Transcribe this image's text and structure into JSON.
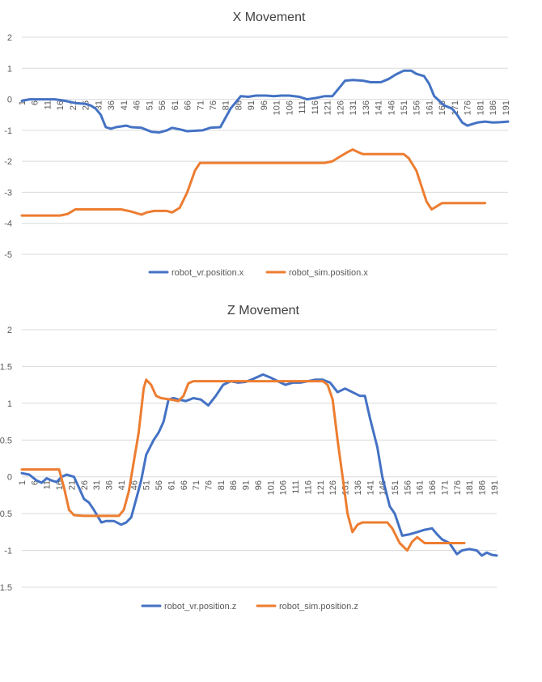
{
  "colors": {
    "vr": "#4472C4",
    "sim": "#ED7D31",
    "grid": "#D9D9D9",
    "text": "#595959"
  },
  "chart_data": [
    {
      "type": "line",
      "title": "X Movement",
      "xlabel": "",
      "ylabel": "",
      "ylim": [
        -5,
        2
      ],
      "y_ticks": [
        2,
        1,
        0,
        -1,
        -2,
        -3,
        -4,
        -5
      ],
      "x_ticks": [
        1,
        6,
        11,
        16,
        21,
        26,
        31,
        36,
        41,
        46,
        51,
        56,
        61,
        66,
        71,
        76,
        81,
        86,
        91,
        96,
        101,
        106,
        111,
        116,
        121,
        126,
        131,
        136,
        141,
        146,
        151,
        156,
        161,
        166,
        171,
        176,
        181,
        186,
        191
      ],
      "x_range": [
        1,
        192
      ],
      "grid": "horizontal",
      "legend_position": "bottom",
      "series": [
        {
          "name": "robot_vr.position.x",
          "color": "#4472C4",
          "points": [
            [
              1,
              -0.05
            ],
            [
              4,
              0
            ],
            [
              8,
              0
            ],
            [
              14,
              0
            ],
            [
              18,
              -0.05
            ],
            [
              22,
              -0.12
            ],
            [
              26,
              -0.15
            ],
            [
              28,
              -0.2
            ],
            [
              30,
              -0.3
            ],
            [
              32,
              -0.5
            ],
            [
              34,
              -0.9
            ],
            [
              36,
              -0.95
            ],
            [
              38,
              -0.9
            ],
            [
              42,
              -0.85
            ],
            [
              44,
              -0.9
            ],
            [
              48,
              -0.92
            ],
            [
              52,
              -1.05
            ],
            [
              55,
              -1.07
            ],
            [
              58,
              -1.0
            ],
            [
              60,
              -0.92
            ],
            [
              63,
              -0.97
            ],
            [
              66,
              -1.03
            ],
            [
              72,
              -1.0
            ],
            [
              75,
              -0.92
            ],
            [
              79,
              -0.9
            ],
            [
              81,
              -0.6
            ],
            [
              83,
              -0.3
            ],
            [
              86,
              0.0
            ],
            [
              87,
              0.1
            ],
            [
              90,
              0.08
            ],
            [
              93,
              0.12
            ],
            [
              97,
              0.12
            ],
            [
              100,
              0.1
            ],
            [
              103,
              0.12
            ],
            [
              106,
              0.12
            ],
            [
              110,
              0.08
            ],
            [
              113,
              0.0
            ],
            [
              117,
              0.05
            ],
            [
              120,
              0.1
            ],
            [
              123,
              0.1
            ],
            [
              126,
              0.4
            ],
            [
              128,
              0.6
            ],
            [
              131,
              0.62
            ],
            [
              135,
              0.6
            ],
            [
              138,
              0.55
            ],
            [
              142,
              0.55
            ],
            [
              145,
              0.65
            ],
            [
              148,
              0.8
            ],
            [
              151,
              0.92
            ],
            [
              154,
              0.92
            ],
            [
              156,
              0.82
            ],
            [
              159,
              0.75
            ],
            [
              161,
              0.5
            ],
            [
              163,
              0.1
            ],
            [
              165,
              -0.05
            ],
            [
              167,
              -0.2
            ],
            [
              170,
              -0.3
            ],
            [
              172,
              -0.5
            ],
            [
              174,
              -0.75
            ],
            [
              176,
              -0.85
            ],
            [
              178,
              -0.8
            ],
            [
              180,
              -0.75
            ],
            [
              183,
              -0.72
            ],
            [
              186,
              -0.75
            ],
            [
              189,
              -0.74
            ],
            [
              192,
              -0.72
            ]
          ]
        },
        {
          "name": "robot_sim.position.x",
          "color": "#ED7D31",
          "points": [
            [
              1,
              -3.75
            ],
            [
              16,
              -3.75
            ],
            [
              19,
              -3.7
            ],
            [
              22,
              -3.55
            ],
            [
              26,
              -3.55
            ],
            [
              40,
              -3.55
            ],
            [
              44,
              -3.62
            ],
            [
              48,
              -3.72
            ],
            [
              50,
              -3.65
            ],
            [
              53,
              -3.6
            ],
            [
              58,
              -3.6
            ],
            [
              60,
              -3.65
            ],
            [
              63,
              -3.5
            ],
            [
              66,
              -3.0
            ],
            [
              69,
              -2.3
            ],
            [
              71,
              -2.05
            ],
            [
              76,
              -2.05
            ],
            [
              90,
              -2.05
            ],
            [
              110,
              -2.05
            ],
            [
              120,
              -2.05
            ],
            [
              123,
              -2.0
            ],
            [
              126,
              -1.85
            ],
            [
              129,
              -1.7
            ],
            [
              131,
              -1.62
            ],
            [
              133,
              -1.7
            ],
            [
              135,
              -1.77
            ],
            [
              140,
              -1.77
            ],
            [
              151,
              -1.77
            ],
            [
              153,
              -1.9
            ],
            [
              156,
              -2.3
            ],
            [
              158,
              -2.8
            ],
            [
              160,
              -3.3
            ],
            [
              162,
              -3.55
            ],
            [
              164,
              -3.45
            ],
            [
              166,
              -3.35
            ],
            [
              172,
              -3.35
            ],
            [
              183,
              -3.35
            ]
          ]
        }
      ]
    },
    {
      "type": "line",
      "title": "Z Movement",
      "xlabel": "",
      "ylabel": "",
      "ylim": [
        -1.5,
        2
      ],
      "y_ticks": [
        2,
        1.5,
        1,
        0.5,
        0,
        -0.5,
        -1,
        -1.5
      ],
      "x_ticks": [
        1,
        6,
        11,
        16,
        21,
        26,
        31,
        36,
        41,
        46,
        51,
        56,
        61,
        66,
        71,
        76,
        81,
        86,
        91,
        96,
        101,
        106,
        111,
        116,
        121,
        126,
        131,
        136,
        141,
        146,
        151,
        156,
        161,
        166,
        171,
        176,
        181,
        186,
        191
      ],
      "x_range": [
        1,
        192
      ],
      "grid": "horizontal",
      "legend_position": "bottom",
      "series": [
        {
          "name": "robot_vr.position.z",
          "color": "#4472C4",
          "points": [
            [
              1,
              0.05
            ],
            [
              4,
              0.03
            ],
            [
              7,
              -0.05
            ],
            [
              9,
              -0.08
            ],
            [
              11,
              -0.02
            ],
            [
              13,
              -0.05
            ],
            [
              15,
              -0.07
            ],
            [
              17,
              0
            ],
            [
              19,
              0.03
            ],
            [
              22,
              0.0
            ],
            [
              24,
              -0.15
            ],
            [
              26,
              -0.3
            ],
            [
              28,
              -0.35
            ],
            [
              30,
              -0.45
            ],
            [
              33,
              -0.62
            ],
            [
              35,
              -0.6
            ],
            [
              38,
              -0.6
            ],
            [
              41,
              -0.65
            ],
            [
              43,
              -0.62
            ],
            [
              45,
              -0.55
            ],
            [
              47,
              -0.3
            ],
            [
              49,
              -0.05
            ],
            [
              51,
              0.3
            ],
            [
              54,
              0.5
            ],
            [
              56,
              0.6
            ],
            [
              58,
              0.75
            ],
            [
              60,
              1.05
            ],
            [
              62,
              1.07
            ],
            [
              64,
              1.05
            ],
            [
              67,
              1.03
            ],
            [
              70,
              1.07
            ],
            [
              73,
              1.05
            ],
            [
              76,
              0.97
            ],
            [
              79,
              1.1
            ],
            [
              82,
              1.25
            ],
            [
              85,
              1.3
            ],
            [
              88,
              1.28
            ],
            [
              91,
              1.29
            ],
            [
              94,
              1.33
            ],
            [
              98,
              1.39
            ],
            [
              101,
              1.35
            ],
            [
              104,
              1.3
            ],
            [
              107,
              1.25
            ],
            [
              110,
              1.28
            ],
            [
              113,
              1.28
            ],
            [
              116,
              1.3
            ],
            [
              119,
              1.32
            ],
            [
              122,
              1.32
            ],
            [
              125,
              1.28
            ],
            [
              128,
              1.15
            ],
            [
              131,
              1.2
            ],
            [
              134,
              1.15
            ],
            [
              137,
              1.1
            ],
            [
              139,
              1.1
            ],
            [
              141,
              0.8
            ],
            [
              144,
              0.4
            ],
            [
              146,
              0.0
            ],
            [
              149,
              -0.4
            ],
            [
              151,
              -0.5
            ],
            [
              154,
              -0.8
            ],
            [
              157,
              -0.78
            ],
            [
              160,
              -0.75
            ],
            [
              163,
              -0.72
            ],
            [
              166,
              -0.7
            ],
            [
              168,
              -0.78
            ],
            [
              170,
              -0.85
            ],
            [
              173,
              -0.9
            ],
            [
              176,
              -1.05
            ],
            [
              178,
              -1.0
            ],
            [
              181,
              -0.98
            ],
            [
              184,
              -1.0
            ],
            [
              186,
              -1.07
            ],
            [
              188,
              -1.03
            ],
            [
              190,
              -1.06
            ],
            [
              192,
              -1.07
            ]
          ]
        },
        {
          "name": "robot_sim.position.z",
          "color": "#ED7D31",
          "points": [
            [
              1,
              0.1
            ],
            [
              10,
              0.1
            ],
            [
              16,
              0.1
            ],
            [
              18,
              -0.15
            ],
            [
              20,
              -0.45
            ],
            [
              22,
              -0.52
            ],
            [
              26,
              -0.53
            ],
            [
              34,
              -0.53
            ],
            [
              40,
              -0.53
            ],
            [
              42,
              -0.45
            ],
            [
              44,
              -0.2
            ],
            [
              46,
              0.2
            ],
            [
              48,
              0.6
            ],
            [
              50,
              1.2
            ],
            [
              51,
              1.32
            ],
            [
              53,
              1.25
            ],
            [
              55,
              1.1
            ],
            [
              57,
              1.07
            ],
            [
              61,
              1.05
            ],
            [
              64,
              1.03
            ],
            [
              66,
              1.1
            ],
            [
              68,
              1.27
            ],
            [
              70,
              1.3
            ],
            [
              76,
              1.3
            ],
            [
              90,
              1.3
            ],
            [
              110,
              1.3
            ],
            [
              122,
              1.3
            ],
            [
              124,
              1.25
            ],
            [
              126,
              1.05
            ],
            [
              128,
              0.5
            ],
            [
              130,
              0.0
            ],
            [
              132,
              -0.5
            ],
            [
              134,
              -0.75
            ],
            [
              136,
              -0.65
            ],
            [
              138,
              -0.62
            ],
            [
              148,
              -0.62
            ],
            [
              150,
              -0.7
            ],
            [
              153,
              -0.9
            ],
            [
              156,
              -1.0
            ],
            [
              158,
              -0.88
            ],
            [
              160,
              -0.82
            ],
            [
              163,
              -0.9
            ],
            [
              170,
              -0.9
            ],
            [
              176,
              -0.9
            ],
            [
              179,
              -0.9
            ]
          ]
        }
      ]
    }
  ]
}
